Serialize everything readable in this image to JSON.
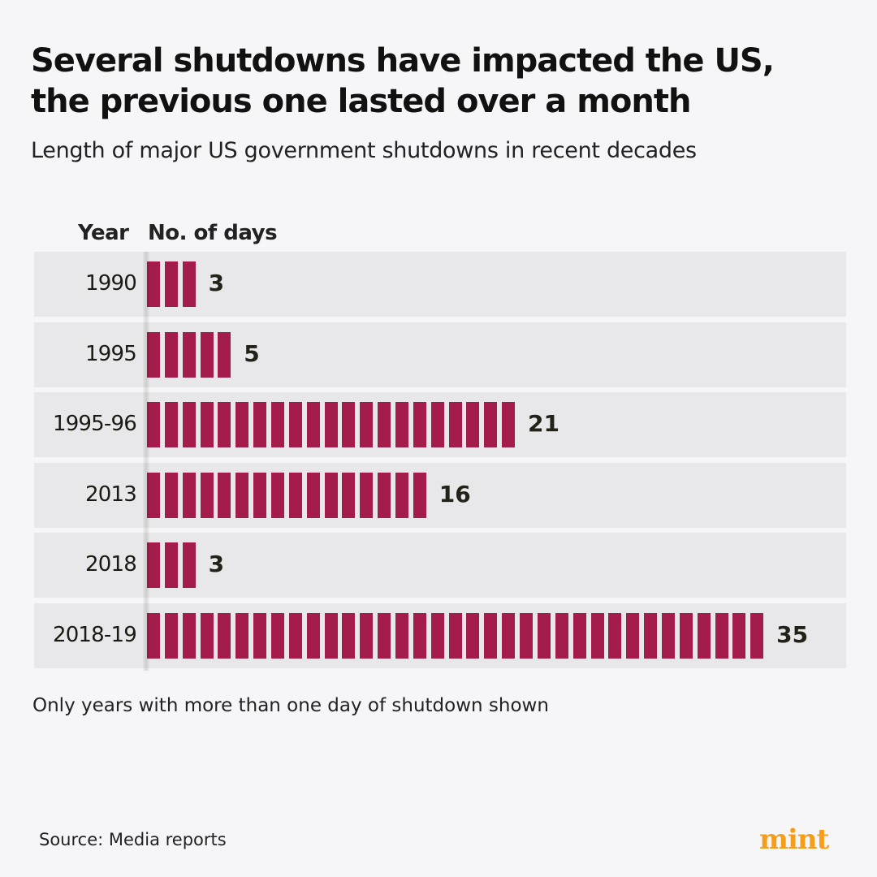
{
  "title_line1": "Several shutdowns have impacted the US,",
  "title_line2": "the previous one lasted over a month",
  "subtitle": "Length of major US government shutdowns in recent decades",
  "note": "Only years with more than one day of shutdown shown",
  "source": "Source: Media reports",
  "logo": "mint",
  "colors": {
    "bar": "#a31c4b",
    "logo": "#f59e1b",
    "row": "#e8e8ea"
  },
  "chart_data": {
    "type": "bar",
    "orientation": "horizontal",
    "xlabel": "No. of days",
    "ylabel": "Year",
    "categories": [
      "1990",
      "1995",
      "1995-96",
      "2013",
      "2018",
      "2018-19"
    ],
    "values": [
      3,
      5,
      21,
      16,
      3,
      35
    ],
    "xlim": [
      0,
      35
    ],
    "grid": false
  }
}
